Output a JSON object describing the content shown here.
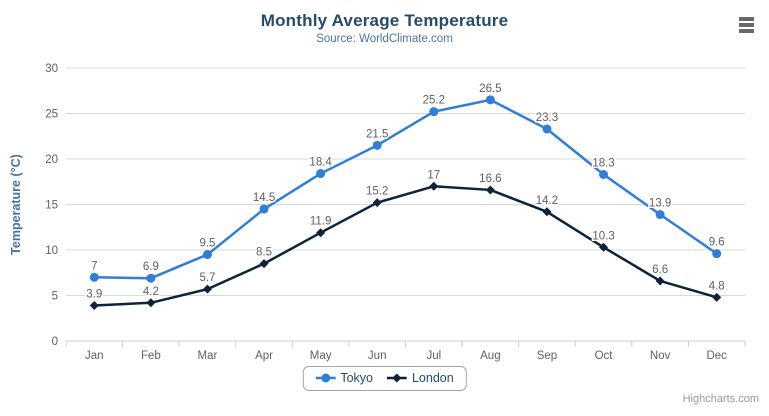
{
  "page": {
    "title": "Monthly Average Temperature",
    "subtitle": "Source: WorldClimate.com",
    "credit": "Highcharts.com"
  },
  "colors": {
    "title": "#274b6d",
    "subtitle": "#4d759e",
    "axis_labels": "#606060",
    "axis_title": "#4572a7",
    "grid": "#d8d8d8",
    "axis_line": "#c0d0e0",
    "data_label": "#606060",
    "legend_text": "#274b6d",
    "credit": "#999999"
  },
  "chart_data": {
    "type": "line",
    "title": "Monthly Average Temperature",
    "subtitle": "Source: WorldClimate.com",
    "categories": [
      "Jan",
      "Feb",
      "Mar",
      "Apr",
      "May",
      "Jun",
      "Jul",
      "Aug",
      "Sep",
      "Oct",
      "Nov",
      "Dec"
    ],
    "series": [
      {
        "name": "Tokyo",
        "color": "#2f7ed8",
        "marker": "circle",
        "values": [
          7,
          6.9,
          9.5,
          14.5,
          18.4,
          21.5,
          25.2,
          26.5,
          23.3,
          18.3,
          13.9,
          9.6
        ]
      },
      {
        "name": "London",
        "color": "#0d233a",
        "marker": "diamond",
        "values": [
          3.9,
          4.2,
          5.7,
          8.5,
          11.9,
          15.2,
          17,
          16.6,
          14.2,
          10.3,
          6.6,
          4.8
        ]
      }
    ],
    "xlabel": "",
    "ylabel": "Temperature (°C)",
    "ylim": [
      0,
      30
    ],
    "y_ticks": [
      0,
      5,
      10,
      15,
      20,
      25,
      30
    ],
    "grid": true,
    "data_labels": true,
    "legend_position": "bottom"
  }
}
